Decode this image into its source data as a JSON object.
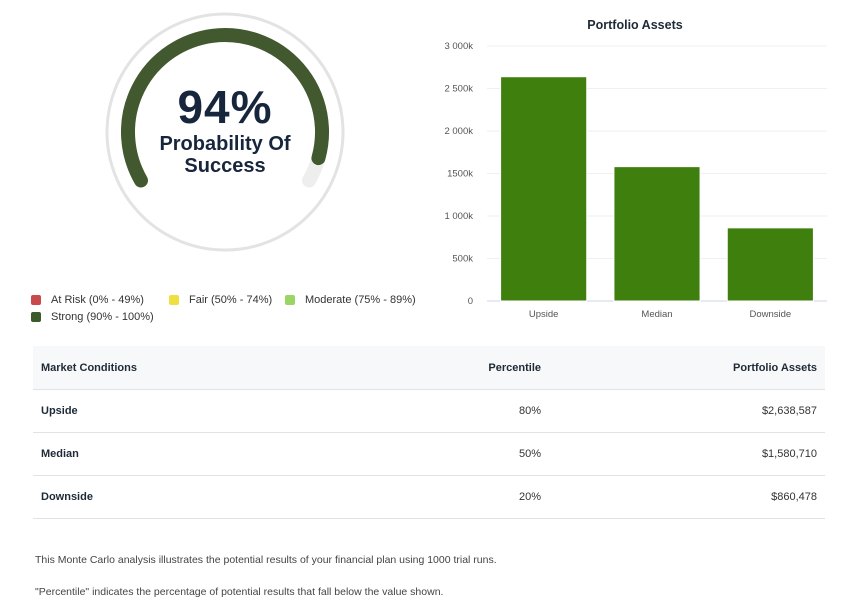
{
  "gauge": {
    "value_label": "94%",
    "value": 94,
    "label": "Probability Of Success",
    "color": "#42592f",
    "track_color": "#eeeeee"
  },
  "legend": [
    {
      "label": "At Risk (0% - 49%)",
      "color": "#c94a4a"
    },
    {
      "label": "Fair (50% - 74%)",
      "color": "#f0df43"
    },
    {
      "label": "Moderate (75% - 89%)",
      "color": "#9bd665"
    },
    {
      "label": "Strong (90% - 100%)",
      "color": "#3d5a2c"
    }
  ],
  "chart_data": {
    "type": "bar",
    "title": "Portfolio Assets",
    "categories": [
      "Upside",
      "Median",
      "Downside"
    ],
    "values": [
      2638587,
      1580710,
      860478
    ],
    "ylim": [
      0,
      3000000
    ],
    "yticks": [
      0,
      500000,
      1000000,
      1500000,
      2000000,
      2500000,
      3000000
    ],
    "ytick_labels": [
      "0",
      "500k",
      "1 000k",
      "1500k",
      "2 000k",
      "2 500k",
      "3 000k"
    ],
    "grid": true,
    "bar_color": "#3f7f0e"
  },
  "table": {
    "headers": [
      "Market Conditions",
      "Percentile",
      "Portfolio Assets"
    ],
    "rows": [
      [
        "Upside",
        "80%",
        "$2,638,587"
      ],
      [
        "Median",
        "50%",
        "$1,580,710"
      ],
      [
        "Downside",
        "20%",
        "$860,478"
      ]
    ]
  },
  "notes": [
    "This Monte Carlo analysis illustrates the potential results of your financial plan using 1000 trial runs.",
    "\"Percentile\" indicates the percentage of potential results that fall below the value shown."
  ]
}
